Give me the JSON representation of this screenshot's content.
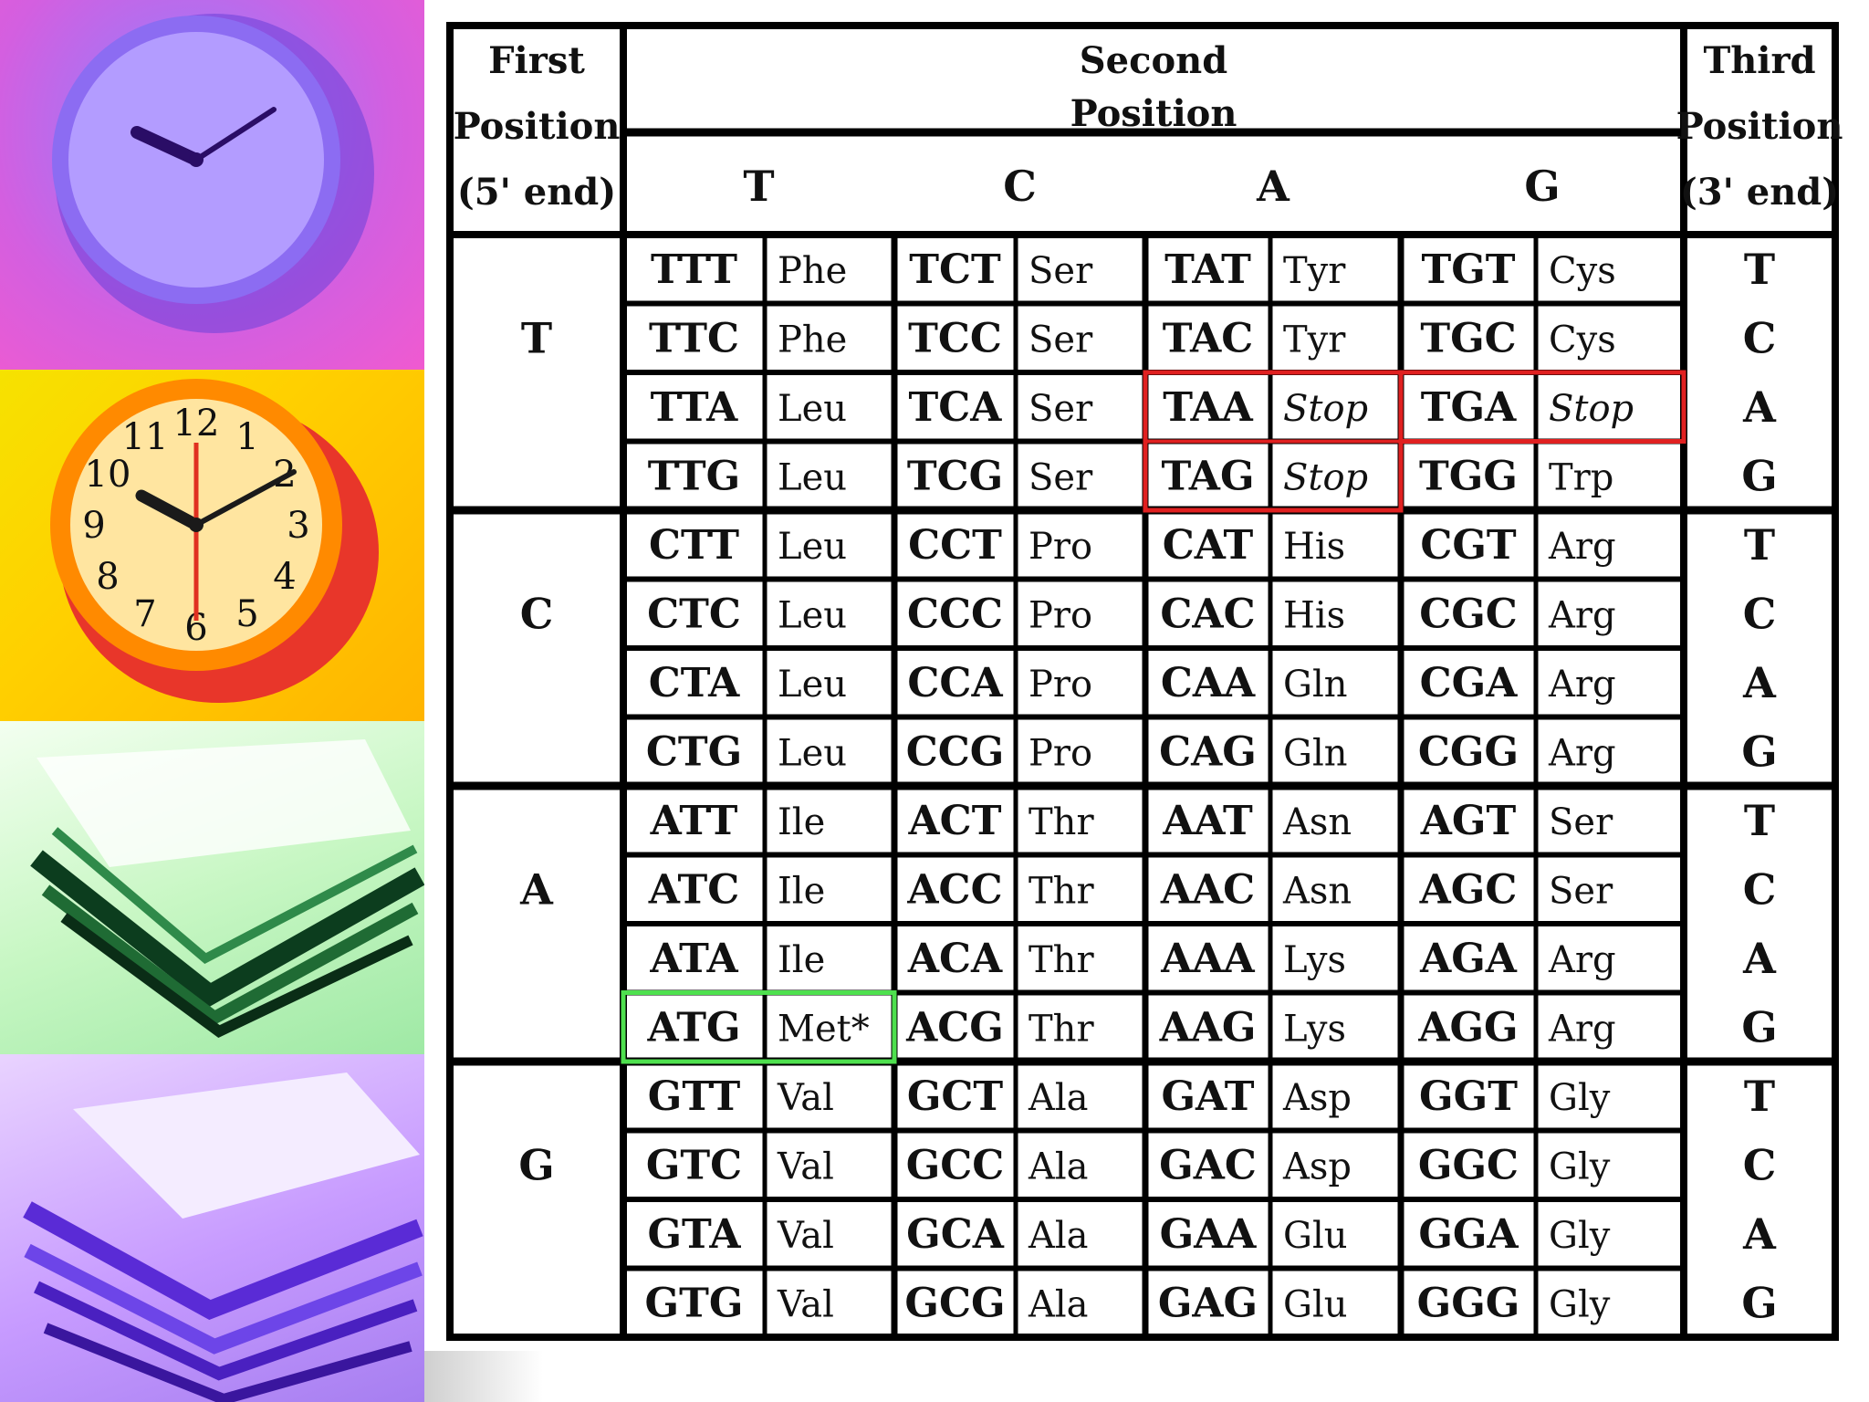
{
  "images": {
    "clock_1": "purple-clock-photo",
    "clock_2": "orange-clock-photo",
    "papers_1": "green-paper-stack-photo",
    "papers_2": "purple-paper-stack-photo"
  },
  "clock_numerals": [
    "12",
    "1",
    "2",
    "3",
    "4",
    "5",
    "6",
    "7",
    "8",
    "9",
    "10",
    "11"
  ],
  "table": {
    "header": {
      "first_position": [
        "First",
        "Position",
        "(5' end)"
      ],
      "second_position": [
        "Second",
        "Position"
      ],
      "third_position": [
        "Third",
        "Position",
        "(3' end)"
      ],
      "second_bases": [
        "T",
        "C",
        "A",
        "G"
      ]
    },
    "groups": [
      {
        "base": "T",
        "rows": [
          {
            "codons": [
              "TTT",
              "Phe",
              "TCT",
              "Ser",
              "TAT",
              "Tyr",
              "TGT",
              "Cys"
            ],
            "third": "T"
          },
          {
            "codons": [
              "TTC",
              "Phe",
              "TCC",
              "Ser",
              "TAC",
              "Tyr",
              "TGC",
              "Cys"
            ],
            "third": "C"
          },
          {
            "codons": [
              "TTA",
              "Leu",
              "TCA",
              "Ser",
              "TAA",
              "Stop",
              "TGA",
              "Stop"
            ],
            "third": "A"
          },
          {
            "codons": [
              "TTG",
              "Leu",
              "TCG",
              "Ser",
              "TAG",
              "Stop",
              "TGG",
              "Trp"
            ],
            "third": "G"
          }
        ]
      },
      {
        "base": "C",
        "rows": [
          {
            "codons": [
              "CTT",
              "Leu",
              "CCT",
              "Pro",
              "CAT",
              "His",
              "CGT",
              "Arg"
            ],
            "third": "T"
          },
          {
            "codons": [
              "CTC",
              "Leu",
              "CCC",
              "Pro",
              "CAC",
              "His",
              "CGC",
              "Arg"
            ],
            "third": "C"
          },
          {
            "codons": [
              "CTA",
              "Leu",
              "CCA",
              "Pro",
              "CAA",
              "Gln",
              "CGA",
              "Arg"
            ],
            "third": "A"
          },
          {
            "codons": [
              "CTG",
              "Leu",
              "CCG",
              "Pro",
              "CAG",
              "Gln",
              "CGG",
              "Arg"
            ],
            "third": "G"
          }
        ]
      },
      {
        "base": "A",
        "rows": [
          {
            "codons": [
              "ATT",
              "Ile",
              "ACT",
              "Thr",
              "AAT",
              "Asn",
              "AGT",
              "Ser"
            ],
            "third": "T"
          },
          {
            "codons": [
              "ATC",
              "Ile",
              "ACC",
              "Thr",
              "AAC",
              "Asn",
              "AGC",
              "Ser"
            ],
            "third": "C"
          },
          {
            "codons": [
              "ATA",
              "Ile",
              "ACA",
              "Thr",
              "AAA",
              "Lys",
              "AGA",
              "Arg"
            ],
            "third": "A"
          },
          {
            "codons": [
              "ATG",
              "Met*",
              "ACG",
              "Thr",
              "AAG",
              "Lys",
              "AGG",
              "Arg"
            ],
            "third": "G"
          }
        ]
      },
      {
        "base": "G",
        "rows": [
          {
            "codons": [
              "GTT",
              "Val",
              "GCT",
              "Ala",
              "GAT",
              "Asp",
              "GGT",
              "Gly"
            ],
            "third": "T"
          },
          {
            "codons": [
              "GTC",
              "Val",
              "GCC",
              "Ala",
              "GAC",
              "Asp",
              "GGC",
              "Gly"
            ],
            "third": "C"
          },
          {
            "codons": [
              "GTA",
              "Val",
              "GCA",
              "Ala",
              "GAA",
              "Glu",
              "GGA",
              "Gly"
            ],
            "third": "A"
          },
          {
            "codons": [
              "GTG",
              "Val",
              "GCG",
              "Ala",
              "GAG",
              "Glu",
              "GGG",
              "Gly"
            ],
            "third": "G"
          }
        ]
      }
    ],
    "highlight_colors": {
      "stop": "#e02020",
      "start": "#4ee04e"
    }
  }
}
